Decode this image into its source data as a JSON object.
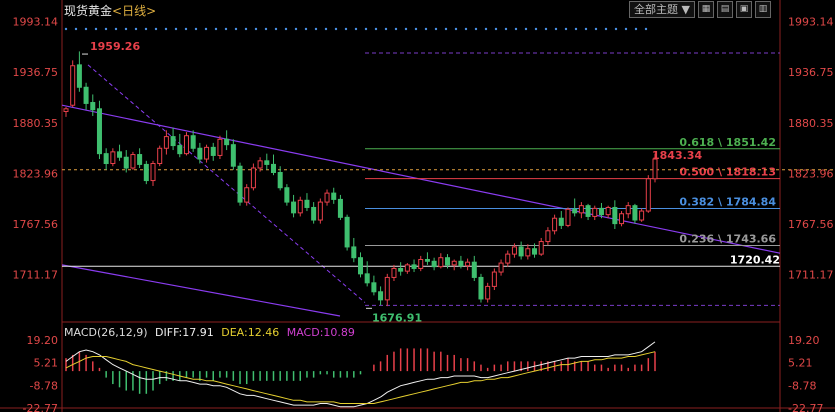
{
  "header": {
    "title": "现货黄金",
    "timeframe": "<日线>",
    "theme_select": "全部主题",
    "theme_arrow": "▼"
  },
  "toolbar_icons": [
    "grid-icon",
    "split-icon",
    "layout-icon",
    "panels-icon"
  ],
  "colors": {
    "up": "#e8404a",
    "down": "#3fbf6f",
    "fib_0618": "#4caf50",
    "fib_0500": "#e8404a",
    "fib_0382": "#4a8fe0",
    "fib_0236": "#9a9a9a",
    "support": "#e8e8e8",
    "channel": "#8a3cf0",
    "current_price": "#e0a040",
    "dif": "#f0f0f0",
    "dea": "#e6d030",
    "macd_label": "#d040d0"
  },
  "chart_data": [
    {
      "type": "candlestick",
      "title": "现货黄金 <日线>",
      "ylim": [
        1665,
        1995
      ],
      "y_ticks": [
        "1993.14",
        "1936.75",
        "1880.35",
        "1823.96",
        "1767.56",
        "1711.17"
      ],
      "ohlc": [
        [
          1893,
          1898,
          1887,
          1896
        ],
        [
          1900,
          1950,
          1898,
          1944
        ],
        [
          1945,
          1960,
          1915,
          1920
        ],
        [
          1920,
          1925,
          1895,
          1902
        ],
        [
          1903,
          1912,
          1888,
          1895
        ],
        [
          1896,
          1905,
          1840,
          1846
        ],
        [
          1846,
          1852,
          1828,
          1835
        ],
        [
          1835,
          1852,
          1832,
          1848
        ],
        [
          1848,
          1856,
          1838,
          1842
        ],
        [
          1842,
          1850,
          1825,
          1830
        ],
        [
          1830,
          1848,
          1828,
          1845
        ],
        [
          1845,
          1852,
          1830,
          1834
        ],
        [
          1834,
          1838,
          1812,
          1816
        ],
        [
          1816,
          1838,
          1810,
          1835
        ],
        [
          1835,
          1855,
          1832,
          1852
        ],
        [
          1852,
          1872,
          1845,
          1865
        ],
        [
          1865,
          1875,
          1850,
          1855
        ],
        [
          1855,
          1868,
          1842,
          1846
        ],
        [
          1846,
          1870,
          1844,
          1866
        ],
        [
          1866,
          1872,
          1848,
          1852
        ],
        [
          1852,
          1858,
          1835,
          1840
        ],
        [
          1840,
          1856,
          1836,
          1853
        ],
        [
          1853,
          1858,
          1838,
          1844
        ],
        [
          1844,
          1866,
          1840,
          1862
        ],
        [
          1862,
          1872,
          1850,
          1856
        ],
        [
          1856,
          1862,
          1828,
          1832
        ],
        [
          1832,
          1836,
          1788,
          1792
        ],
        [
          1792,
          1812,
          1788,
          1808
        ],
        [
          1808,
          1835,
          1805,
          1830
        ],
        [
          1830,
          1842,
          1826,
          1838
        ],
        [
          1838,
          1846,
          1828,
          1834
        ],
        [
          1834,
          1845,
          1822,
          1825
        ],
        [
          1825,
          1832,
          1805,
          1808
        ],
        [
          1808,
          1812,
          1788,
          1792
        ],
        [
          1792,
          1800,
          1775,
          1780
        ],
        [
          1780,
          1798,
          1776,
          1794
        ],
        [
          1794,
          1802,
          1782,
          1786
        ],
        [
          1786,
          1792,
          1768,
          1772
        ],
        [
          1772,
          1796,
          1768,
          1792
        ],
        [
          1792,
          1806,
          1788,
          1802
        ],
        [
          1802,
          1808,
          1790,
          1795
        ],
        [
          1795,
          1800,
          1772,
          1775
        ],
        [
          1775,
          1778,
          1738,
          1742
        ],
        [
          1742,
          1752,
          1725,
          1730
        ],
        [
          1730,
          1736,
          1708,
          1712
        ],
        [
          1712,
          1726,
          1698,
          1702
        ],
        [
          1702,
          1710,
          1688,
          1692
        ],
        [
          1692,
          1698,
          1677,
          1683
        ],
        [
          1683,
          1712,
          1676,
          1708
        ],
        [
          1708,
          1722,
          1704,
          1718
        ],
        [
          1718,
          1725,
          1710,
          1715
        ],
        [
          1715,
          1724,
          1712,
          1722
        ],
        [
          1722,
          1728,
          1714,
          1718
        ],
        [
          1718,
          1732,
          1715,
          1728
        ],
        [
          1728,
          1736,
          1722,
          1726
        ],
        [
          1726,
          1730,
          1716,
          1720
        ],
        [
          1720,
          1735,
          1718,
          1730
        ],
        [
          1730,
          1734,
          1718,
          1722
        ],
        [
          1722,
          1728,
          1716,
          1726
        ],
        [
          1726,
          1732,
          1718,
          1721
        ],
        [
          1721,
          1729,
          1716,
          1725
        ],
        [
          1725,
          1732,
          1704,
          1708
        ],
        [
          1708,
          1712,
          1680,
          1684
        ],
        [
          1684,
          1702,
          1680,
          1698
        ],
        [
          1698,
          1718,
          1694,
          1714
        ],
        [
          1714,
          1728,
          1710,
          1724
        ],
        [
          1724,
          1738,
          1720,
          1734
        ],
        [
          1734,
          1746,
          1730,
          1742
        ],
        [
          1742,
          1748,
          1728,
          1732
        ],
        [
          1732,
          1745,
          1728,
          1740
        ],
        [
          1740,
          1746,
          1730,
          1734
        ],
        [
          1734,
          1752,
          1732,
          1748
        ],
        [
          1748,
          1764,
          1744,
          1760
        ],
        [
          1760,
          1778,
          1756,
          1774
        ],
        [
          1774,
          1782,
          1762,
          1766
        ],
        [
          1766,
          1786,
          1764,
          1784
        ],
        [
          1784,
          1796,
          1776,
          1780
        ],
        [
          1780,
          1792,
          1774,
          1788
        ],
        [
          1788,
          1790,
          1772,
          1776
        ],
        [
          1776,
          1788,
          1772,
          1785
        ],
        [
          1785,
          1791,
          1774,
          1778
        ],
        [
          1778,
          1788,
          1774,
          1786
        ],
        [
          1786,
          1794,
          1762,
          1768
        ],
        [
          1768,
          1782,
          1765,
          1779
        ],
        [
          1779,
          1792,
          1774,
          1788
        ],
        [
          1788,
          1790,
          1768,
          1772
        ],
        [
          1772,
          1785,
          1770,
          1782
        ],
        [
          1782,
          1822,
          1780,
          1818
        ],
        [
          1818,
          1846,
          1814,
          1840
        ]
      ],
      "annotations": [
        {
          "label": "1959.26",
          "kind": "high",
          "value": 1959.26
        },
        {
          "label": "1676.91",
          "kind": "low",
          "value": 1676.91
        },
        {
          "label": "1843.34",
          "kind": "current",
          "value": 1843.34
        }
      ],
      "fibonacci": [
        {
          "label": "0.618 \\ 1851.42",
          "ratio": 0.618,
          "value": 1851.42
        },
        {
          "label": "0.500 \\ 1818.13",
          "ratio": 0.5,
          "value": 1818.13
        },
        {
          "label": "0.382 \\ 1784.84",
          "ratio": 0.382,
          "value": 1784.84
        },
        {
          "label": "0.236 \\ 1743.66",
          "ratio": 0.236,
          "value": 1743.66
        }
      ],
      "support_line": {
        "label": "1720.42",
        "value": 1720.42
      },
      "dashed_levels": [
        1959.26,
        1676.91
      ]
    },
    {
      "type": "macd",
      "title": "MACD(26,12,9)",
      "ylim": [
        -22.77,
        19.2
      ],
      "y_ticks": [
        "19.20",
        "5.21",
        "-8.78",
        "-22.77"
      ],
      "dif": [
        6,
        9,
        12,
        13,
        12,
        10,
        7,
        4,
        2,
        0,
        -2,
        -4,
        -5,
        -5,
        -4,
        -4,
        -5,
        -6,
        -6,
        -7,
        -8,
        -8,
        -9,
        -9,
        -10,
        -12,
        -14,
        -15,
        -15,
        -16,
        -17,
        -18,
        -19,
        -20,
        -21,
        -21,
        -21,
        -21,
        -20,
        -20,
        -21,
        -22,
        -22,
        -22,
        -21,
        -20,
        -18,
        -16,
        -13,
        -11,
        -9,
        -8,
        -7,
        -6,
        -5,
        -5,
        -4,
        -4,
        -3,
        -3,
        -3,
        -3,
        -4,
        -4,
        -3,
        -2,
        -1,
        0,
        1,
        2,
        3,
        4,
        5,
        6,
        7,
        8,
        8,
        9,
        9,
        9,
        9,
        9,
        10,
        10,
        10,
        11,
        12,
        15,
        18
      ],
      "dea": [
        2,
        4,
        6,
        8,
        9,
        9,
        9,
        8,
        7,
        6,
        4,
        3,
        2,
        1,
        0,
        -1,
        -2,
        -3,
        -4,
        -5,
        -5,
        -6,
        -6,
        -7,
        -8,
        -9,
        -10,
        -11,
        -12,
        -13,
        -14,
        -15,
        -16,
        -17,
        -18,
        -18,
        -19,
        -19,
        -19,
        -19,
        -19,
        -20,
        -20,
        -20,
        -20,
        -20,
        -20,
        -19,
        -18,
        -17,
        -16,
        -15,
        -14,
        -13,
        -12,
        -11,
        -10,
        -9,
        -8,
        -7,
        -7,
        -6,
        -6,
        -5,
        -5,
        -4,
        -4,
        -3,
        -2,
        -1,
        0,
        1,
        2,
        3,
        4,
        4,
        5,
        6,
        6,
        7,
        7,
        8,
        8,
        8,
        9,
        9,
        10,
        11,
        12
      ],
      "legend": {
        "label": "MACD(26,12,9)",
        "dif": "DIFF:17.91",
        "dea": "DEA:12.46",
        "macd": "MACD:10.89"
      }
    }
  ]
}
